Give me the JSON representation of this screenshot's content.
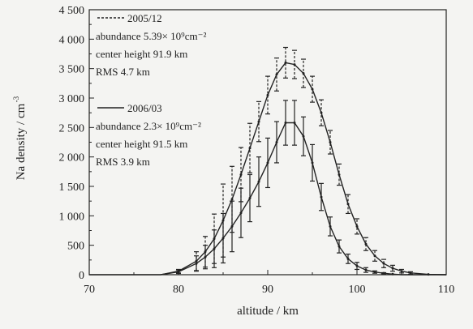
{
  "chart_data": {
    "type": "line",
    "xlabel": "altitude / km",
    "ylabel": "Na density / cm",
    "ylabel_superscript": "-3",
    "xlim": [
      70,
      110
    ],
    "ylim": [
      0,
      4500
    ],
    "x_ticks": [
      70,
      80,
      90,
      100,
      110
    ],
    "y_ticks": [
      0,
      500,
      1000,
      1500,
      2000,
      2500,
      3000,
      3500,
      4000,
      4500
    ],
    "x_tick_labels": [
      "70",
      "80",
      "90",
      "100",
      "110"
    ],
    "y_tick_labels": [
      "0",
      "500",
      "1 000",
      "1 500",
      "2 000",
      "2 500",
      "3 000",
      "3 500",
      "4 000",
      "4 500"
    ],
    "grid": false,
    "legend_position": "top-left",
    "series": [
      {
        "name": "2005/12",
        "style": "dashed",
        "info_lines": [
          "abundance 5.39× 10⁹cm⁻²",
          "center height 91.9 km",
          "RMS 4.7 km"
        ],
        "x": [
          78,
          80,
          82,
          83,
          84,
          85,
          86,
          87,
          88,
          89,
          90,
          91,
          92,
          93,
          94,
          95,
          96,
          97,
          98,
          99,
          100,
          101,
          102,
          103,
          104,
          105,
          106,
          108,
          110
        ],
        "y": [
          0,
          60,
          230,
          390,
          610,
          920,
          1280,
          1700,
          2150,
          2600,
          3050,
          3400,
          3600,
          3570,
          3420,
          3150,
          2750,
          2250,
          1700,
          1200,
          820,
          520,
          320,
          190,
          110,
          60,
          30,
          5,
          0
        ],
        "err": [
          0,
          30,
          160,
          260,
          420,
          620,
          560,
          460,
          420,
          340,
          320,
          280,
          260,
          240,
          240,
          220,
          220,
          200,
          180,
          160,
          130,
          110,
          90,
          70,
          50,
          30,
          20,
          0,
          0
        ]
      },
      {
        "name": "2006/03",
        "style": "solid",
        "info_lines": [
          "abundance 2.3× 10⁹cm⁻²",
          "center height 91.5 km",
          "RMS 3.9 km"
        ],
        "x": [
          70,
          78,
          80,
          82,
          83,
          84,
          85,
          86,
          87,
          88,
          89,
          90,
          91,
          92,
          93,
          94,
          95,
          96,
          97,
          98,
          99,
          100,
          101,
          102,
          103,
          104,
          105,
          110
        ],
        "y": [
          0,
          0,
          50,
          190,
          300,
          440,
          620,
          820,
          1050,
          1300,
          1580,
          1900,
          2250,
          2580,
          2580,
          2350,
          1900,
          1320,
          820,
          480,
          270,
          150,
          80,
          45,
          25,
          10,
          0,
          0
        ],
        "err": [
          0,
          0,
          30,
          130,
          200,
          320,
          420,
          430,
          420,
          400,
          420,
          420,
          350,
          380,
          380,
          330,
          310,
          230,
          160,
          110,
          80,
          60,
          40,
          20,
          10,
          0,
          0,
          0
        ]
      }
    ]
  }
}
